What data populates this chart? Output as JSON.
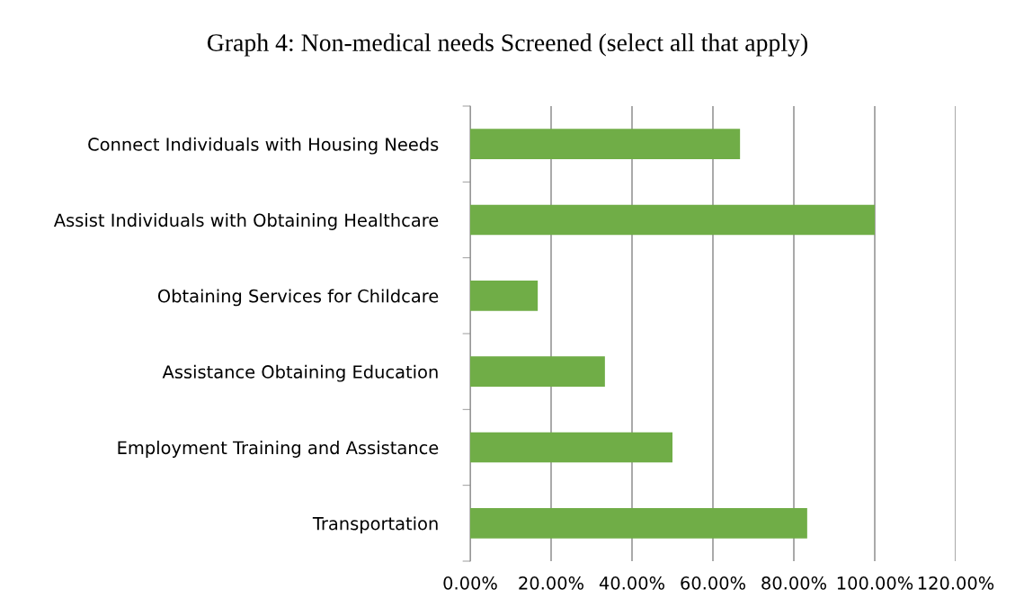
{
  "chart_data": {
    "type": "bar",
    "orientation": "horizontal",
    "title": "Graph 4: Non-medical needs Screened (select all that apply)",
    "categories": [
      "Connect Individuals with Housing Needs",
      "Assist Individuals with Obtaining Healthcare",
      "Obtaining Services for Childcare",
      "Assistance Obtaining Education",
      "Employment Training and Assistance",
      "Transportation"
    ],
    "values": [
      66.7,
      100,
      16.7,
      33.3,
      50,
      83.3
    ],
    "color": "#70ad47",
    "xlim": [
      0,
      120
    ],
    "xticks": [
      {
        "value": 0,
        "label": "0.00%"
      },
      {
        "value": 20,
        "label": "20.00%"
      },
      {
        "value": 40,
        "label": "40.00%"
      },
      {
        "value": 60,
        "label": "60.00%"
      },
      {
        "value": 80,
        "label": "80.00%"
      },
      {
        "value": 100,
        "label": "100.00%"
      },
      {
        "value": 120,
        "label": "120.00%"
      }
    ],
    "grid": "x",
    "legend": false
  }
}
